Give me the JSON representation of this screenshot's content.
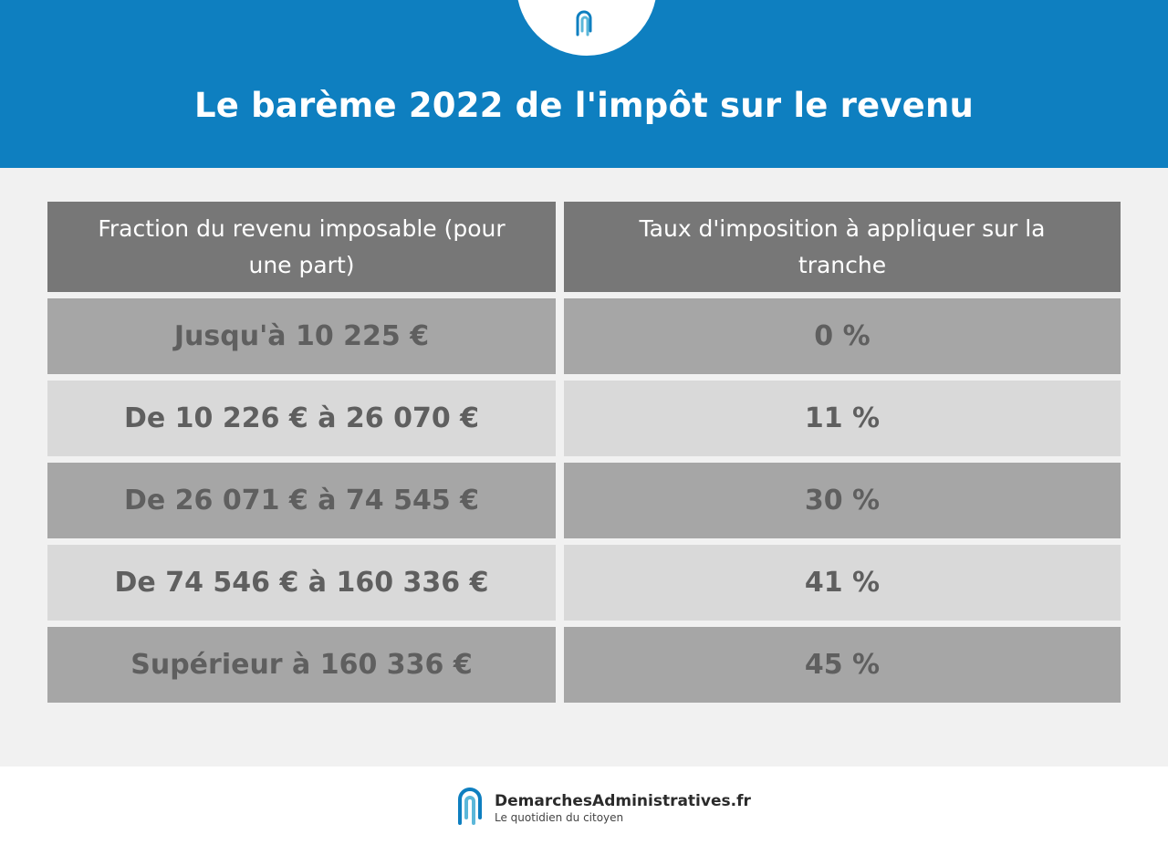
{
  "header": {
    "title": "Le barème 2022 de l'impôt sur le revenu",
    "logo_icon": "paperclip-logo-icon",
    "background_color": "#0e7fc0"
  },
  "table": {
    "columns": [
      "Fraction du revenu imposable (pour une part)",
      "Taux d'imposition à appliquer sur la tranche"
    ],
    "rows": [
      {
        "bracket": "Jusqu'à 10 225 €",
        "rate": "0 %"
      },
      {
        "bracket": "De 10 226 € à 26 070 €",
        "rate": "11 %"
      },
      {
        "bracket": "De 26 071 € à 74 545 €",
        "rate": "30 %"
      },
      {
        "bracket": "De 74 546 € à 160 336 €",
        "rate": "41 %"
      },
      {
        "bracket": "Supérieur à 160 336 €",
        "rate": "45 %"
      }
    ]
  },
  "footer": {
    "brand_name": "DemarchesAdministratives.fr",
    "tagline": "Le quotidien du citoyen",
    "logo_icon": "paperclip-logo-icon"
  }
}
